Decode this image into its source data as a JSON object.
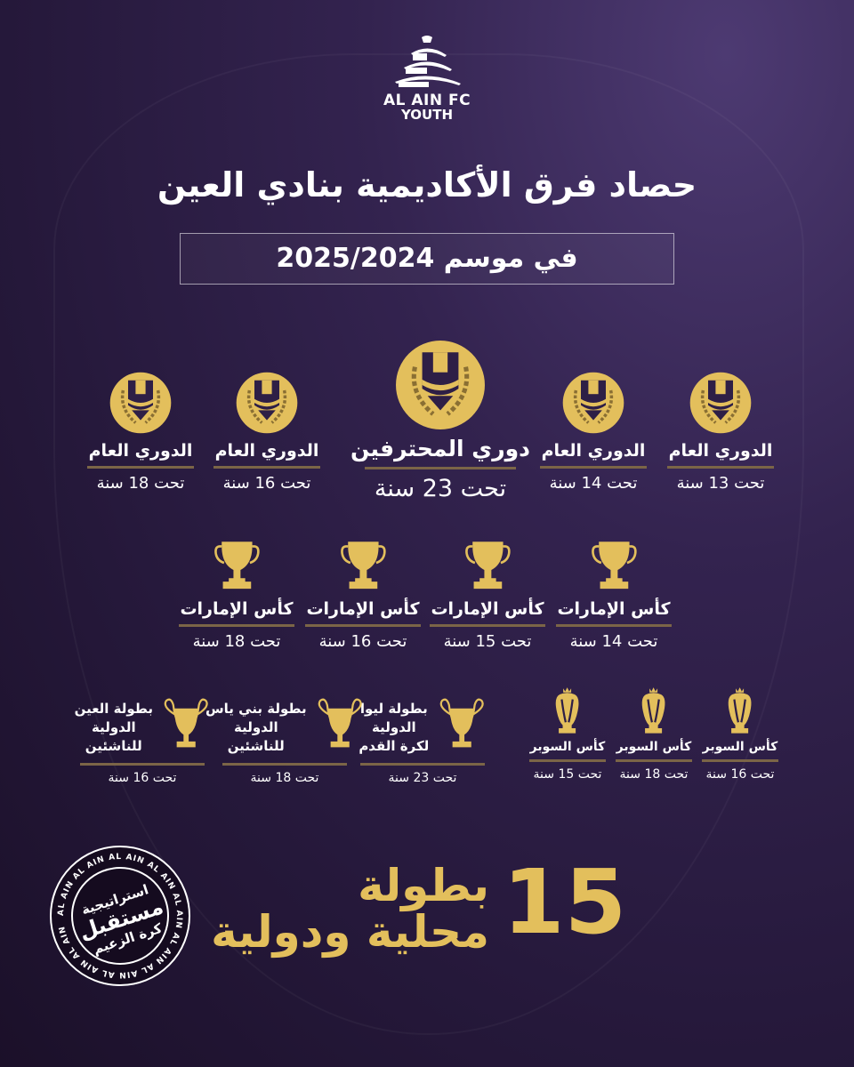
{
  "logo": {
    "line1": "AL AIN FC",
    "line2": "YOUTH"
  },
  "title": "حصاد فرق الأكاديمية بنادي العين",
  "season": "في موسم 2025/2024",
  "colors": {
    "gold": "#e3bf5c",
    "divider": "#7b6547",
    "background": "#2a1c42"
  },
  "leagues": [
    {
      "label": "الدوري العام",
      "sub": "تحت 13 سنة",
      "icon": "league-medal-icon"
    },
    {
      "label": "الدوري العام",
      "sub": "تحت 14 سنة",
      "icon": "league-medal-icon"
    },
    {
      "label": "دوري المحترفين",
      "sub": "تحت 23 سنة",
      "icon": "league-medal-icon"
    },
    {
      "label": "الدوري العام",
      "sub": "تحت 16 سنة",
      "icon": "league-medal-icon"
    },
    {
      "label": "الدوري العام",
      "sub": "تحت 18 سنة",
      "icon": "league-medal-icon"
    }
  ],
  "cups": [
    {
      "label": "كأس الإمارات",
      "sub": "تحت 14 سنة",
      "icon": "cup-trophy-icon"
    },
    {
      "label": "كأس الإمارات",
      "sub": "تحت 15 سنة",
      "icon": "cup-trophy-icon"
    },
    {
      "label": "كأس الإمارات",
      "sub": "تحت 16 سنة",
      "icon": "cup-trophy-icon"
    },
    {
      "label": "كأس الإمارات",
      "sub": "تحت 18 سنة",
      "icon": "cup-trophy-icon"
    }
  ],
  "super_cups": [
    {
      "label": "كأس السوبر",
      "sub": "تحت 16 سنة",
      "icon": "super-cup-trophy-icon"
    },
    {
      "label": "كأس السوبر",
      "sub": "تحت 18 سنة",
      "icon": "super-cup-trophy-icon"
    },
    {
      "label": "كأس السوبر",
      "sub": "تحت 15 سنة",
      "icon": "super-cup-trophy-icon"
    }
  ],
  "international": [
    {
      "lines": [
        "بطولة ليوا",
        "الدولية",
        "لكرة القدم"
      ],
      "sub": "تحت 23 سنة",
      "icon": "big-ears-trophy-icon"
    },
    {
      "lines": [
        "بطولة بني ياس",
        "الدولية",
        "للناشئين"
      ],
      "sub": "تحت 18 سنة",
      "icon": "big-ears-trophy-icon"
    },
    {
      "lines": [
        "بطولة العين",
        "الدولية",
        "للناشئين"
      ],
      "sub": "تحت 16 سنة",
      "icon": "big-ears-trophy-icon"
    }
  ],
  "total": {
    "number": "15",
    "line1": "بطولة",
    "line2": "محلية ودولية"
  },
  "stamp": {
    "ring_text": "AL AIN",
    "line1": "استراتيجية",
    "line2": "مستقبل",
    "line3": "كرة الزعيم"
  }
}
